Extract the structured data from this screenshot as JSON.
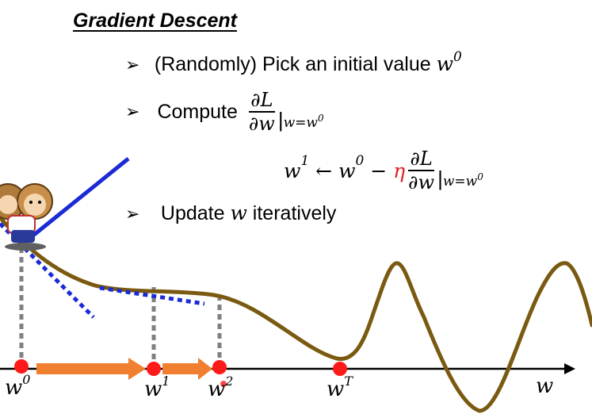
{
  "title": "Gradient Descent",
  "bullet_glyph": "➢",
  "bullets": [
    {
      "text": "(Randomly) Pick an initial value ",
      "var": "w",
      "sup": "0"
    },
    {
      "text": "Compute"
    },
    {
      "text_before": "Update ",
      "var": "w",
      "text_after": " iteratively"
    }
  ],
  "derivative": {
    "num": "∂L",
    "den": "∂w",
    "eval": "|",
    "sub_var": "w=w",
    "sub_sup": "0"
  },
  "update_rule": {
    "lhs": "w",
    "lhs_sup": "1",
    "arrow": " ← ",
    "w0": "w",
    "w0_sup": "0",
    "minus": " − ",
    "eta": "η"
  },
  "axis": {
    "labels": [
      {
        "var": "w",
        "sup": "0"
      },
      {
        "var": "w",
        "sup": "1"
      },
      {
        "var": "w",
        "sup": "2"
      },
      {
        "var": "w",
        "sup": "T"
      },
      {
        "var": "w",
        "sup": ""
      }
    ]
  },
  "colors": {
    "curve": "#7a5a10",
    "point": "#ff1a1a",
    "step_arrow": "#f08030",
    "tangent": "#1a2ad6",
    "guide": "#808080",
    "eta": "#e02020"
  },
  "icons": [
    "character-icon",
    "step-arrow-icon"
  ]
}
